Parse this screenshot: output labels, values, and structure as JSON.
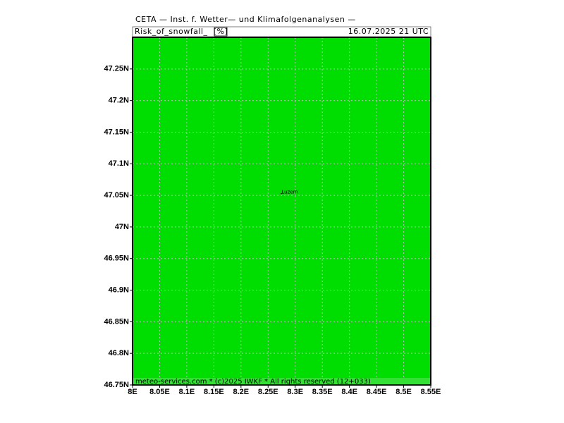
{
  "header": {
    "title": "CETA — Inst. f. Wetter— und Klimafolgenanalysen —",
    "variable": "Risk_of_snowfall_",
    "unit": "[%]",
    "valid_time": "16.07.2025 21 UTC"
  },
  "map": {
    "xlim": [
      8,
      8.55
    ],
    "ylim": [
      46.75,
      47.3
    ],
    "xticks": [
      {
        "value": 8,
        "label": "8E"
      },
      {
        "value": 8.05,
        "label": "8.05E"
      },
      {
        "value": 8.1,
        "label": "8.1E"
      },
      {
        "value": 8.15,
        "label": "8.15E"
      },
      {
        "value": 8.2,
        "label": "8.2E"
      },
      {
        "value": 8.25,
        "label": "8.25E"
      },
      {
        "value": 8.3,
        "label": "8.3E"
      },
      {
        "value": 8.35,
        "label": "8.35E"
      },
      {
        "value": 8.4,
        "label": "8.4E"
      },
      {
        "value": 8.45,
        "label": "8.45E"
      },
      {
        "value": 8.5,
        "label": "8.5E"
      },
      {
        "value": 8.55,
        "label": "8.55E"
      }
    ],
    "yticks": [
      {
        "value": 46.75,
        "label": "46.75N"
      },
      {
        "value": 46.8,
        "label": "46.8N"
      },
      {
        "value": 46.85,
        "label": "46.85N"
      },
      {
        "value": 46.9,
        "label": "46.9N"
      },
      {
        "value": 46.95,
        "label": "46.95N"
      },
      {
        "value": 47,
        "label": "47N"
      },
      {
        "value": 47.05,
        "label": "47.05N"
      },
      {
        "value": 47.1,
        "label": "47.1N"
      },
      {
        "value": 47.15,
        "label": "47.15N"
      },
      {
        "value": 47.2,
        "label": "47.2N"
      },
      {
        "value": 47.25,
        "label": "47.25N"
      }
    ],
    "places": [
      {
        "name": "Luzern",
        "lon": 8.29,
        "lat": 47.055
      }
    ]
  },
  "footer": "meteo-services.com * (c)2025 IWKF * All rights reserved (12+033)"
}
